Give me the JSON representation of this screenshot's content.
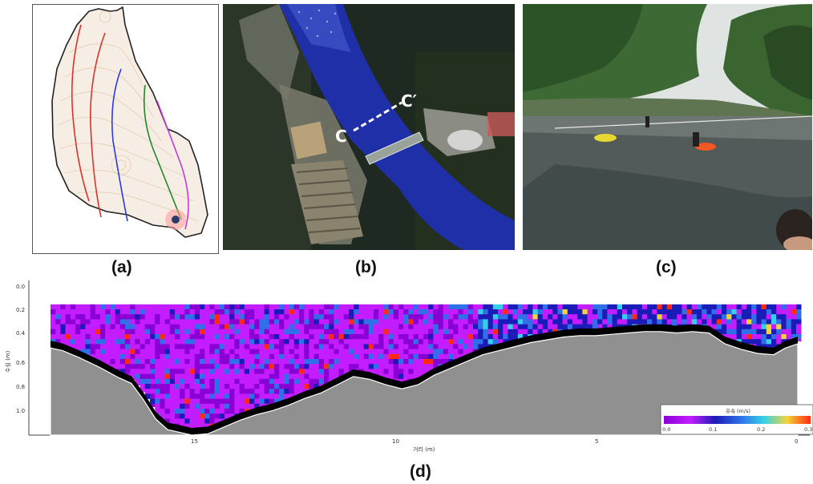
{
  "captions": {
    "a": "(a)",
    "b": "(b)",
    "c": "(c)",
    "d": "(d)"
  },
  "panel_b": {
    "section_start_label": "C",
    "section_end_label": "C′"
  },
  "panel_d": {
    "ylabel": "수심 (m)",
    "xlabel": "거리 (m)",
    "y_ticks": [
      "0.0",
      "0.2",
      "0.4",
      "0.6",
      "0.8",
      "1.0"
    ],
    "x_ticks": [
      "15",
      "10",
      "5",
      "0"
    ],
    "colorbar": {
      "title": "유속 (m/s)",
      "ticks": [
        "0.0",
        "0.1",
        "0.2",
        "0.3"
      ],
      "range": [
        0.0,
        0.3
      ],
      "colors": [
        "#8a00d4",
        "#c21cff",
        "#1b1bb8",
        "#2f6fe8",
        "#35d0e8",
        "#f2d43a",
        "#ff2a10"
      ]
    },
    "axis_ranges": {
      "x": [
        18.5,
        0
      ],
      "y": [
        0.0,
        1.1
      ]
    },
    "bed_profile": {
      "x_m": [
        18.5,
        18.2,
        17.8,
        17.3,
        16.8,
        16.5,
        16.2,
        15.9,
        15.6,
        15.3,
        15.0,
        14.6,
        14.2,
        13.8,
        13.4,
        13.0,
        12.6,
        12.2,
        11.8,
        11.4,
        11.0,
        10.6,
        10.2,
        9.8,
        9.4,
        9.0,
        8.6,
        8.2,
        7.8,
        7.4,
        7.0,
        6.6,
        6.2,
        5.8,
        5.4,
        5.0,
        4.6,
        4.2,
        3.8,
        3.4,
        3.0,
        2.6,
        2.2,
        1.8,
        1.4,
        1.0,
        0.6,
        0.3,
        0.0
      ],
      "depth_m": [
        0.46,
        0.48,
        0.53,
        0.6,
        0.68,
        0.72,
        0.84,
        0.98,
        1.06,
        1.08,
        1.1,
        1.09,
        1.04,
        0.99,
        0.95,
        0.92,
        0.88,
        0.83,
        0.79,
        0.73,
        0.67,
        0.69,
        0.73,
        0.76,
        0.73,
        0.66,
        0.61,
        0.56,
        0.51,
        0.48,
        0.45,
        0.42,
        0.4,
        0.38,
        0.37,
        0.37,
        0.36,
        0.35,
        0.34,
        0.34,
        0.35,
        0.34,
        0.35,
        0.43,
        0.47,
        0.5,
        0.51,
        0.46,
        0.43
      ]
    },
    "measure_top_depth_m": 0.14
  }
}
